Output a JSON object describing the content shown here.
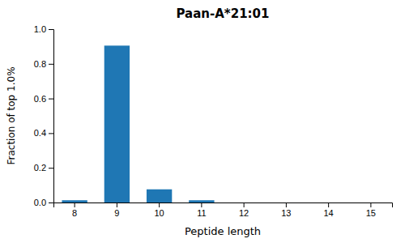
{
  "chart_data": {
    "type": "bar",
    "title": "Paan-A*21:01",
    "xlabel": "Peptide length",
    "ylabel": "Fraction of top 1.0%",
    "categories": [
      8,
      9,
      10,
      11,
      12,
      13,
      14,
      15
    ],
    "values": [
      0.013,
      0.905,
      0.076,
      0.013,
      0.0,
      0.0,
      0.0,
      0.0
    ],
    "color": "#1f77b4",
    "ylim": [
      0.0,
      1.0
    ],
    "yticks": [
      {
        "value": 0.0,
        "label": "0.0"
      },
      0.2,
      0.4,
      0.6,
      0.8,
      {
        "value": 1.0,
        "label": "1.0"
      }
    ],
    "grid": false
  }
}
